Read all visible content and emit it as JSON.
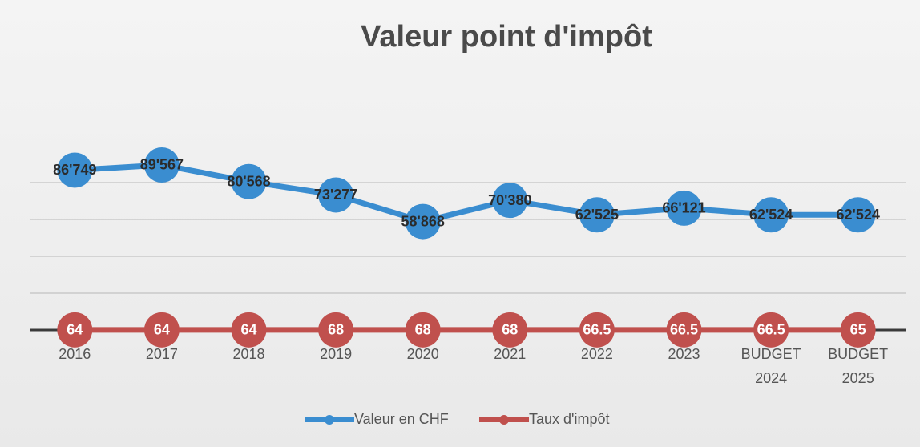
{
  "chart_data": {
    "type": "line",
    "title": "Valeur point d'impôt",
    "categories": [
      "2016",
      "2017",
      "2018",
      "2019",
      "2020",
      "2021",
      "2022",
      "2023",
      "BUDGET 2024",
      "BUDGET 2025"
    ],
    "series": [
      {
        "name": "Valeur en CHF",
        "color": "#3a8dd0",
        "values": [
          86749,
          89567,
          80568,
          73277,
          58868,
          70380,
          62525,
          66121,
          62524,
          62524
        ],
        "value_labels": [
          "86'749",
          "89'567",
          "80'568",
          "73'277",
          "58'868",
          "70'380",
          "62'525",
          "66'121",
          "62'524",
          "62'524"
        ]
      },
      {
        "name": "Taux d'impôt",
        "color": "#c0504d",
        "values": [
          64,
          64,
          64,
          68,
          68,
          68,
          66.5,
          66.5,
          66.5,
          65
        ]
      }
    ],
    "ylim": [
      0,
      100000
    ],
    "yticks": [
      0,
      20000,
      40000,
      60000,
      80000
    ],
    "show_ytick_labels": false,
    "grid": true,
    "legend": "bottom"
  }
}
